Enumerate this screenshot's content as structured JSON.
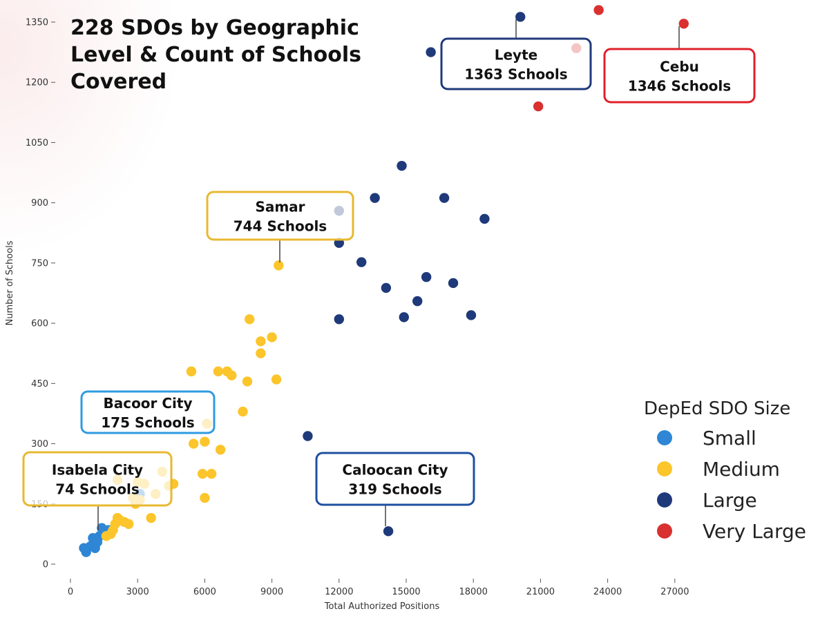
{
  "chart_data": {
    "type": "scatter",
    "title": [
      "228 SDOs by Geographic",
      "Level & Count of Schools",
      "Covered"
    ],
    "xlabel": "Total Authorized Positions",
    "ylabel": "Number of Schools",
    "xlim": [
      -500,
      29000
    ],
    "ylim": [
      -20,
      1380
    ],
    "x_ticks": [
      0,
      3000,
      6000,
      9000,
      12000,
      15000,
      18000,
      21000,
      24000,
      27000
    ],
    "y_ticks": [
      0,
      150,
      300,
      450,
      600,
      750,
      900,
      1050,
      1200,
      1350
    ],
    "grid": false,
    "legend": {
      "title": "DepEd SDO Size",
      "position": "right",
      "items": [
        "Small",
        "Medium",
        "Large",
        "Very Large"
      ]
    },
    "series": [
      {
        "name": "Small",
        "color": "#2E86D4",
        "points": [
          [
            700,
            30
          ],
          [
            600,
            40
          ],
          [
            900,
            45
          ],
          [
            1100,
            40
          ],
          [
            1200,
            55
          ],
          [
            1000,
            65
          ],
          [
            1300,
            70
          ],
          [
            1500,
            80
          ],
          [
            1400,
            90
          ],
          [
            1700,
            85
          ],
          [
            3100,
            175
          ]
        ]
      },
      {
        "name": "Medium",
        "color": "#FBC52B",
        "points": [
          [
            1600,
            70
          ],
          [
            1800,
            75
          ],
          [
            1900,
            85
          ],
          [
            2000,
            100
          ],
          [
            2200,
            110
          ],
          [
            2400,
            105
          ],
          [
            2100,
            115
          ],
          [
            2600,
            100
          ],
          [
            2900,
            150
          ],
          [
            2800,
            165
          ],
          [
            3100,
            160
          ],
          [
            3300,
            200
          ],
          [
            2100,
            210
          ],
          [
            3000,
            205
          ],
          [
            3600,
            115
          ],
          [
            3800,
            175
          ],
          [
            4100,
            230
          ],
          [
            4400,
            195
          ],
          [
            4600,
            200
          ],
          [
            5500,
            300
          ],
          [
            5900,
            225
          ],
          [
            6000,
            305
          ],
          [
            6100,
            350
          ],
          [
            6300,
            225
          ],
          [
            6000,
            165
          ],
          [
            6700,
            285
          ],
          [
            5400,
            480
          ],
          [
            6600,
            480
          ],
          [
            7000,
            480
          ],
          [
            7200,
            470
          ],
          [
            7700,
            380
          ],
          [
            7900,
            455
          ],
          [
            8000,
            610
          ],
          [
            8500,
            555
          ],
          [
            8500,
            525
          ],
          [
            9000,
            565
          ],
          [
            9200,
            460
          ],
          [
            9300,
            744
          ]
        ]
      },
      {
        "name": "Large",
        "color": "#1F3A7A",
        "points": [
          [
            14200,
            82
          ],
          [
            10600,
            319
          ],
          [
            12000,
            610
          ],
          [
            12000,
            800
          ],
          [
            12000,
            880
          ],
          [
            13000,
            752
          ],
          [
            13600,
            912
          ],
          [
            14100,
            688
          ],
          [
            14800,
            992
          ],
          [
            14900,
            615
          ],
          [
            15500,
            655
          ],
          [
            15900,
            715
          ],
          [
            16700,
            912
          ],
          [
            17100,
            700
          ],
          [
            17900,
            620
          ],
          [
            18500,
            860
          ],
          [
            16100,
            1275
          ],
          [
            20100,
            1363
          ]
        ]
      },
      {
        "name": "Very Large",
        "color": "#D93030",
        "points": [
          [
            20900,
            1140
          ],
          [
            22600,
            1285
          ],
          [
            23600,
            1380
          ],
          [
            27400,
            1346
          ]
        ]
      }
    ],
    "annotations": [
      {
        "id": "leyte",
        "lines": [
          "Leyte",
          "1363 Schools"
        ],
        "border_color": "#1F3A7A"
      },
      {
        "id": "cebu",
        "lines": [
          "Cebu",
          "1346 Schools"
        ],
        "border_color": "#E0202A"
      },
      {
        "id": "samar",
        "lines": [
          "Samar",
          "744 Schools"
        ],
        "border_color": "#E8B830"
      },
      {
        "id": "bacoor",
        "lines": [
          "Bacoor City",
          "175 Schools"
        ],
        "border_color": "#2E9BE0"
      },
      {
        "id": "isabela",
        "lines": [
          "Isabela City",
          "74 Schools"
        ],
        "border_color": "#E8B830"
      },
      {
        "id": "caloocan",
        "lines": [
          "Caloocan City",
          "319 Schools"
        ],
        "border_color": "#1F4FA0"
      }
    ]
  }
}
